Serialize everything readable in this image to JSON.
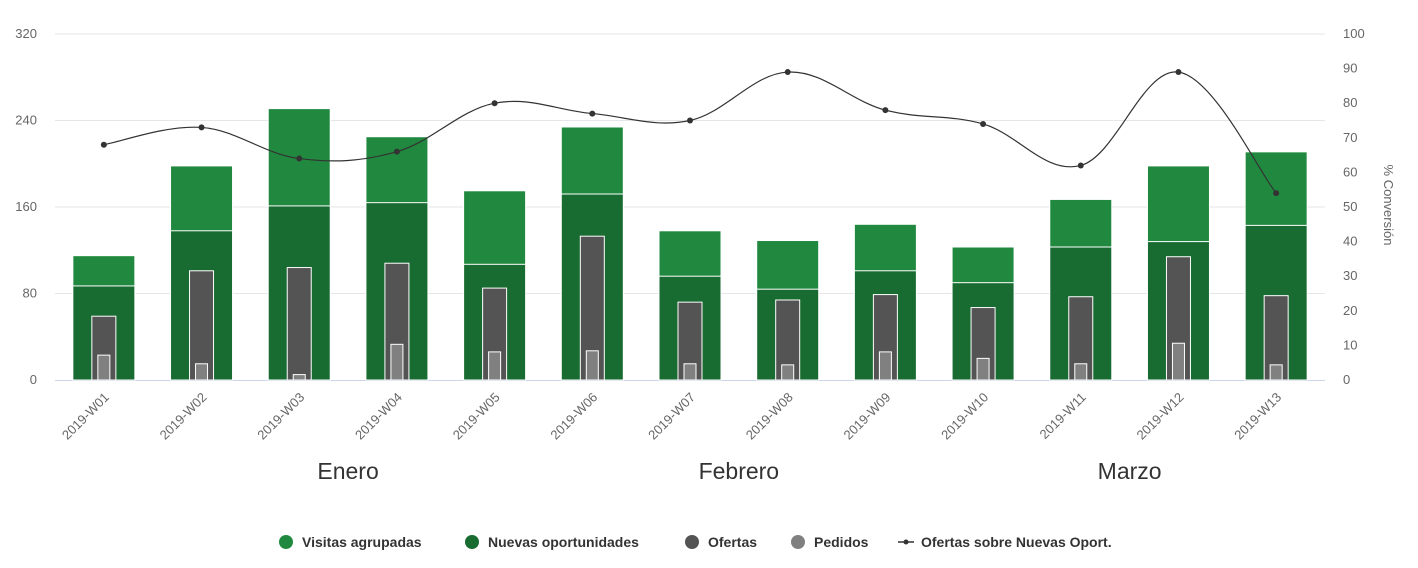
{
  "chart_data": {
    "type": "bar",
    "categories": [
      "2019-W01",
      "2019-W02",
      "2019-W03",
      "2019-W04",
      "2019-W05",
      "2019-W06",
      "2019-W07",
      "2019-W08",
      "2019-W09",
      "2019-W10",
      "2019-W11",
      "2019-W12",
      "2019-W13"
    ],
    "months": [
      {
        "label": "Enero",
        "center_index": 2.5
      },
      {
        "label": "Febrero",
        "center_index": 6.5
      },
      {
        "label": "Marzo",
        "center_index": 10.5
      }
    ],
    "y_left": {
      "min": 0,
      "max": 320,
      "ticks": [
        0,
        80,
        160,
        240,
        320
      ]
    },
    "y_right": {
      "min": 0,
      "max": 100,
      "ticks": [
        0,
        10,
        20,
        30,
        40,
        50,
        60,
        70,
        80,
        90,
        100
      ],
      "title": "% Conversión"
    },
    "series": [
      {
        "name": "Visitas agrupadas",
        "color": "#21893f",
        "type": "bar",
        "values": [
          115,
          198,
          251,
          225,
          175,
          234,
          138,
          129,
          144,
          123,
          167,
          198,
          211
        ]
      },
      {
        "name": "Nuevas oportunidades",
        "color": "#186b31",
        "type": "bar",
        "values": [
          87,
          138,
          161,
          164,
          107,
          172,
          96,
          84,
          101,
          90,
          123,
          128,
          143
        ]
      },
      {
        "name": "Ofertas",
        "color": "#545454",
        "type": "bar",
        "values": [
          59,
          101,
          104,
          108,
          85,
          133,
          72,
          74,
          79,
          67,
          77,
          114,
          78
        ]
      },
      {
        "name": "Pedidos",
        "color": "#808080",
        "type": "bar",
        "values": [
          23,
          15,
          5,
          33,
          26,
          27,
          15,
          14,
          26,
          20,
          15,
          34,
          14
        ]
      },
      {
        "name": "Ofertas sobre Nuevas Oport.",
        "color": "#333333",
        "type": "line",
        "axis": "right",
        "values": [
          68,
          73,
          64,
          66,
          80,
          77,
          75,
          89,
          78,
          74,
          62,
          89,
          54
        ]
      }
    ],
    "grid": true,
    "legend_position": "bottom"
  }
}
